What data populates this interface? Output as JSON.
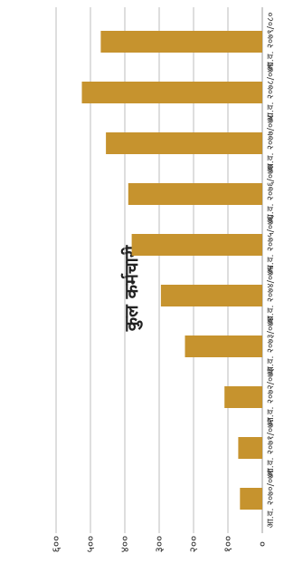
{
  "chart_data": {
    "type": "bar",
    "title": "कुल कर्मचारी",
    "categories": [
      "आ.व. २०७०/०७१",
      "आ.व. २०७१/०७२",
      "आ.व. २०७२/०७३",
      "आ.व. २०७३/०७४",
      "आ.व. २०७४/०७५",
      "आ.व. २०७५/०७६",
      "आ.व. २०७६/०७७",
      "आ.व. २०७७/०७८",
      "आ.व. २०७८/०७९",
      "आ.व. २०७९/०८०"
    ],
    "values": [
      65,
      70,
      110,
      225,
      295,
      380,
      390,
      455,
      525,
      470
    ],
    "y_ticks": [
      "०",
      "१००",
      "२००",
      "३००",
      "४००",
      "५००",
      "६००"
    ],
    "ylim": [
      0,
      600
    ],
    "grid": true,
    "bar_color": "#C6932E",
    "grid_color": "#BDBDBD"
  }
}
